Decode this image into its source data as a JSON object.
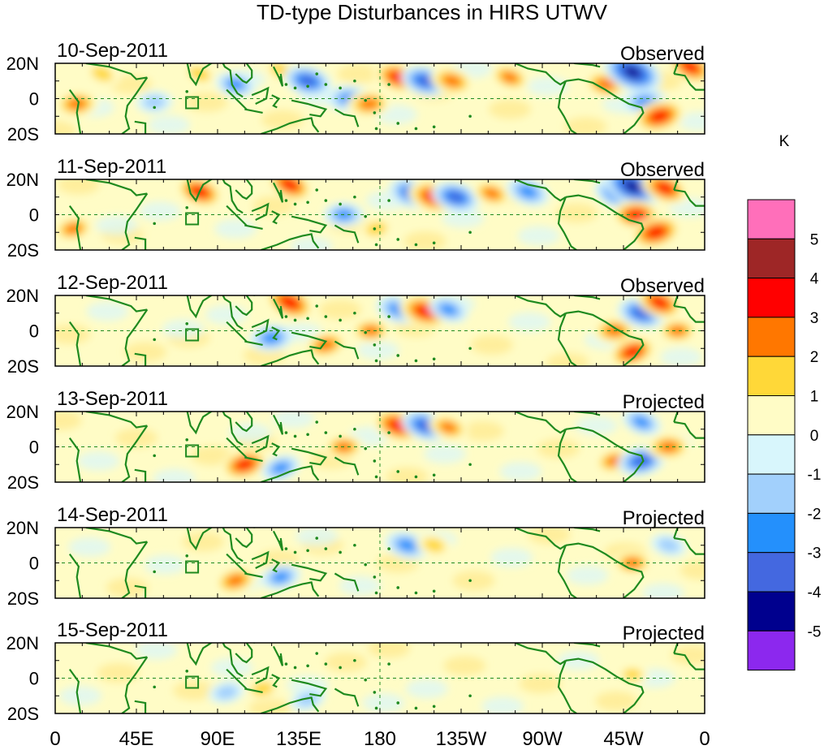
{
  "chart_data": {
    "type": "heatmap",
    "title": "TD-type Disturbances in HIRS UTWV",
    "units": "K",
    "x_tick_labels": [
      "0",
      "45E",
      "90E",
      "135E",
      "180",
      "135W",
      "90W",
      "45W",
      "0"
    ],
    "x_tick_longitudes": [
      0,
      45,
      90,
      135,
      180,
      225,
      270,
      315,
      360
    ],
    "y_tick_labels": [
      "20N",
      "0",
      "20S"
    ],
    "y_tick_latitudes": [
      20,
      0,
      -20
    ],
    "colorbar": {
      "levels": [
        "5",
        "4",
        "3",
        "2",
        "1",
        "0",
        "-1",
        "-2",
        "-3",
        "-4",
        "-5"
      ],
      "colors": [
        "#ff6fba",
        "#9e2626",
        "#ff0000",
        "#ff7700",
        "#ffd838",
        "#fffcc6",
        "#d8f6fc",
        "#a2d0fc",
        "#2490fc",
        "#4468e0",
        "#00008e",
        "#8c28ee"
      ]
    },
    "panels": [
      {
        "date": "10-Sep-2011",
        "kind": "Observed",
        "anomalies": [
          {
            "lon": 12,
            "lat": -3,
            "value": 2.5
          },
          {
            "lon": 26,
            "lat": 14,
            "value": 1.5
          },
          {
            "lon": 55,
            "lat": -2,
            "value": -1.5
          },
          {
            "lon": 80,
            "lat": 14,
            "value": 1.5
          },
          {
            "lon": 100,
            "lat": 8,
            "value": -2
          },
          {
            "lon": 125,
            "lat": 16,
            "value": 1.5
          },
          {
            "lon": 140,
            "lat": 10,
            "value": -3
          },
          {
            "lon": 163,
            "lat": 0,
            "value": -2.5
          },
          {
            "lon": 174,
            "lat": -3,
            "value": 2.5
          },
          {
            "lon": 190,
            "lat": 12,
            "value": 3
          },
          {
            "lon": 205,
            "lat": 10,
            "value": -3
          },
          {
            "lon": 220,
            "lat": 10,
            "value": 2.5
          },
          {
            "lon": 252,
            "lat": 12,
            "value": 2
          },
          {
            "lon": 305,
            "lat": 8,
            "value": 2.5
          },
          {
            "lon": 320,
            "lat": 15,
            "value": -4.5
          },
          {
            "lon": 327,
            "lat": -2,
            "value": -2.5
          },
          {
            "lon": 335,
            "lat": -10,
            "value": 3.5
          },
          {
            "lon": 352,
            "lat": 18,
            "value": 3
          }
        ]
      },
      {
        "date": "11-Sep-2011",
        "kind": "Observed",
        "anomalies": [
          {
            "lon": 10,
            "lat": -8,
            "value": 2
          },
          {
            "lon": 80,
            "lat": 13,
            "value": 3
          },
          {
            "lon": 130,
            "lat": 17,
            "value": 3
          },
          {
            "lon": 160,
            "lat": 0,
            "value": -2
          },
          {
            "lon": 178,
            "lat": -8,
            "value": 1.5
          },
          {
            "lon": 198,
            "lat": 12,
            "value": -3
          },
          {
            "lon": 210,
            "lat": 10,
            "value": 3.5
          },
          {
            "lon": 222,
            "lat": 10,
            "value": -3
          },
          {
            "lon": 242,
            "lat": 12,
            "value": 2
          },
          {
            "lon": 262,
            "lat": 13,
            "value": -2.5
          },
          {
            "lon": 312,
            "lat": 12,
            "value": -3
          },
          {
            "lon": 320,
            "lat": 16,
            "value": -4.5
          },
          {
            "lon": 322,
            "lat": 0,
            "value": 3
          },
          {
            "lon": 333,
            "lat": -10,
            "value": 3.5
          },
          {
            "lon": 338,
            "lat": 15,
            "value": 3
          }
        ]
      },
      {
        "date": "12-Sep-2011",
        "kind": "Observed",
        "anomalies": [
          {
            "lon": 120,
            "lat": -4,
            "value": -2.5
          },
          {
            "lon": 130,
            "lat": 16,
            "value": 3.5
          },
          {
            "lon": 150,
            "lat": -8,
            "value": 2.5
          },
          {
            "lon": 175,
            "lat": 0,
            "value": 2
          },
          {
            "lon": 190,
            "lat": 12,
            "value": -2.5
          },
          {
            "lon": 205,
            "lat": 11,
            "value": 3.5
          },
          {
            "lon": 218,
            "lat": 12,
            "value": -2
          },
          {
            "lon": 310,
            "lat": 0,
            "value": 2.5
          },
          {
            "lon": 320,
            "lat": -12,
            "value": 3
          },
          {
            "lon": 325,
            "lat": 10,
            "value": -3
          },
          {
            "lon": 335,
            "lat": 16,
            "value": 3
          },
          {
            "lon": 345,
            "lat": 0,
            "value": 2
          }
        ]
      },
      {
        "date": "13-Sep-2011",
        "kind": "Projected",
        "anomalies": [
          {
            "lon": 105,
            "lat": -10,
            "value": 3
          },
          {
            "lon": 125,
            "lat": -12,
            "value": -2
          },
          {
            "lon": 160,
            "lat": 0,
            "value": 2
          },
          {
            "lon": 190,
            "lat": 12,
            "value": 3.5
          },
          {
            "lon": 205,
            "lat": 12,
            "value": -3
          },
          {
            "lon": 218,
            "lat": 11,
            "value": 2
          },
          {
            "lon": 310,
            "lat": -8,
            "value": 2
          },
          {
            "lon": 325,
            "lat": -8,
            "value": -3
          },
          {
            "lon": 325,
            "lat": 14,
            "value": -2
          },
          {
            "lon": 340,
            "lat": 0,
            "value": 2.5
          }
        ]
      },
      {
        "date": "14-Sep-2011",
        "kind": "Projected",
        "anomalies": [
          {
            "lon": 100,
            "lat": -10,
            "value": 2.5
          },
          {
            "lon": 125,
            "lat": -8,
            "value": -2
          },
          {
            "lon": 195,
            "lat": 10,
            "value": -2.5
          },
          {
            "lon": 210,
            "lat": 10,
            "value": 1.5
          },
          {
            "lon": 320,
            "lat": 0,
            "value": 2
          },
          {
            "lon": 340,
            "lat": 10,
            "value": -1.5
          }
        ]
      },
      {
        "date": "15-Sep-2011",
        "kind": "Projected",
        "anomalies": [
          {
            "lon": 95,
            "lat": -8,
            "value": -1.5
          },
          {
            "lon": 115,
            "lat": -6,
            "value": 1.5
          },
          {
            "lon": 140,
            "lat": -12,
            "value": -1.5
          },
          {
            "lon": 320,
            "lat": 2,
            "value": 1
          }
        ]
      }
    ]
  }
}
